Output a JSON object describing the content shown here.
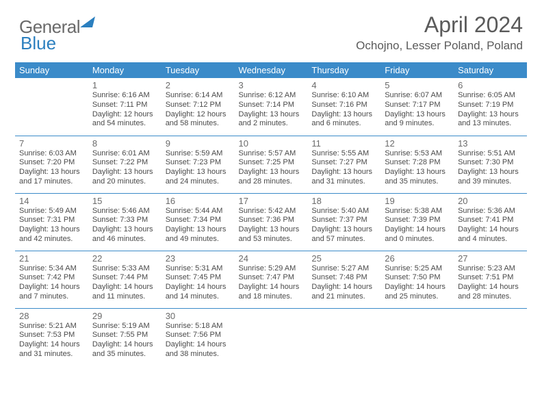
{
  "brand": {
    "name1": "General",
    "name2": "Blue"
  },
  "title": "April 2024",
  "location": "Ochojno, Lesser Poland, Poland",
  "colors": {
    "header_bg": "#3b8bc9",
    "header_text": "#ffffff",
    "border": "#3b8bc9",
    "text": "#4a4a4a",
    "title_text": "#5a5a5a",
    "logo_gray": "#6a6a6a",
    "logo_blue": "#2b7fbf"
  },
  "dayHeaders": [
    "Sunday",
    "Monday",
    "Tuesday",
    "Wednesday",
    "Thursday",
    "Friday",
    "Saturday"
  ],
  "weeks": [
    [
      null,
      {
        "n": "1",
        "sr": "Sunrise: 6:16 AM",
        "ss": "Sunset: 7:11 PM",
        "dl": "Daylight: 12 hours and 54 minutes."
      },
      {
        "n": "2",
        "sr": "Sunrise: 6:14 AM",
        "ss": "Sunset: 7:12 PM",
        "dl": "Daylight: 12 hours and 58 minutes."
      },
      {
        "n": "3",
        "sr": "Sunrise: 6:12 AM",
        "ss": "Sunset: 7:14 PM",
        "dl": "Daylight: 13 hours and 2 minutes."
      },
      {
        "n": "4",
        "sr": "Sunrise: 6:10 AM",
        "ss": "Sunset: 7:16 PM",
        "dl": "Daylight: 13 hours and 6 minutes."
      },
      {
        "n": "5",
        "sr": "Sunrise: 6:07 AM",
        "ss": "Sunset: 7:17 PM",
        "dl": "Daylight: 13 hours and 9 minutes."
      },
      {
        "n": "6",
        "sr": "Sunrise: 6:05 AM",
        "ss": "Sunset: 7:19 PM",
        "dl": "Daylight: 13 hours and 13 minutes."
      }
    ],
    [
      {
        "n": "7",
        "sr": "Sunrise: 6:03 AM",
        "ss": "Sunset: 7:20 PM",
        "dl": "Daylight: 13 hours and 17 minutes."
      },
      {
        "n": "8",
        "sr": "Sunrise: 6:01 AM",
        "ss": "Sunset: 7:22 PM",
        "dl": "Daylight: 13 hours and 20 minutes."
      },
      {
        "n": "9",
        "sr": "Sunrise: 5:59 AM",
        "ss": "Sunset: 7:23 PM",
        "dl": "Daylight: 13 hours and 24 minutes."
      },
      {
        "n": "10",
        "sr": "Sunrise: 5:57 AM",
        "ss": "Sunset: 7:25 PM",
        "dl": "Daylight: 13 hours and 28 minutes."
      },
      {
        "n": "11",
        "sr": "Sunrise: 5:55 AM",
        "ss": "Sunset: 7:27 PM",
        "dl": "Daylight: 13 hours and 31 minutes."
      },
      {
        "n": "12",
        "sr": "Sunrise: 5:53 AM",
        "ss": "Sunset: 7:28 PM",
        "dl": "Daylight: 13 hours and 35 minutes."
      },
      {
        "n": "13",
        "sr": "Sunrise: 5:51 AM",
        "ss": "Sunset: 7:30 PM",
        "dl": "Daylight: 13 hours and 39 minutes."
      }
    ],
    [
      {
        "n": "14",
        "sr": "Sunrise: 5:49 AM",
        "ss": "Sunset: 7:31 PM",
        "dl": "Daylight: 13 hours and 42 minutes."
      },
      {
        "n": "15",
        "sr": "Sunrise: 5:46 AM",
        "ss": "Sunset: 7:33 PM",
        "dl": "Daylight: 13 hours and 46 minutes."
      },
      {
        "n": "16",
        "sr": "Sunrise: 5:44 AM",
        "ss": "Sunset: 7:34 PM",
        "dl": "Daylight: 13 hours and 49 minutes."
      },
      {
        "n": "17",
        "sr": "Sunrise: 5:42 AM",
        "ss": "Sunset: 7:36 PM",
        "dl": "Daylight: 13 hours and 53 minutes."
      },
      {
        "n": "18",
        "sr": "Sunrise: 5:40 AM",
        "ss": "Sunset: 7:37 PM",
        "dl": "Daylight: 13 hours and 57 minutes."
      },
      {
        "n": "19",
        "sr": "Sunrise: 5:38 AM",
        "ss": "Sunset: 7:39 PM",
        "dl": "Daylight: 14 hours and 0 minutes."
      },
      {
        "n": "20",
        "sr": "Sunrise: 5:36 AM",
        "ss": "Sunset: 7:41 PM",
        "dl": "Daylight: 14 hours and 4 minutes."
      }
    ],
    [
      {
        "n": "21",
        "sr": "Sunrise: 5:34 AM",
        "ss": "Sunset: 7:42 PM",
        "dl": "Daylight: 14 hours and 7 minutes."
      },
      {
        "n": "22",
        "sr": "Sunrise: 5:33 AM",
        "ss": "Sunset: 7:44 PM",
        "dl": "Daylight: 14 hours and 11 minutes."
      },
      {
        "n": "23",
        "sr": "Sunrise: 5:31 AM",
        "ss": "Sunset: 7:45 PM",
        "dl": "Daylight: 14 hours and 14 minutes."
      },
      {
        "n": "24",
        "sr": "Sunrise: 5:29 AM",
        "ss": "Sunset: 7:47 PM",
        "dl": "Daylight: 14 hours and 18 minutes."
      },
      {
        "n": "25",
        "sr": "Sunrise: 5:27 AM",
        "ss": "Sunset: 7:48 PM",
        "dl": "Daylight: 14 hours and 21 minutes."
      },
      {
        "n": "26",
        "sr": "Sunrise: 5:25 AM",
        "ss": "Sunset: 7:50 PM",
        "dl": "Daylight: 14 hours and 25 minutes."
      },
      {
        "n": "27",
        "sr": "Sunrise: 5:23 AM",
        "ss": "Sunset: 7:51 PM",
        "dl": "Daylight: 14 hours and 28 minutes."
      }
    ],
    [
      {
        "n": "28",
        "sr": "Sunrise: 5:21 AM",
        "ss": "Sunset: 7:53 PM",
        "dl": "Daylight: 14 hours and 31 minutes."
      },
      {
        "n": "29",
        "sr": "Sunrise: 5:19 AM",
        "ss": "Sunset: 7:55 PM",
        "dl": "Daylight: 14 hours and 35 minutes."
      },
      {
        "n": "30",
        "sr": "Sunrise: 5:18 AM",
        "ss": "Sunset: 7:56 PM",
        "dl": "Daylight: 14 hours and 38 minutes."
      },
      null,
      null,
      null,
      null
    ]
  ]
}
